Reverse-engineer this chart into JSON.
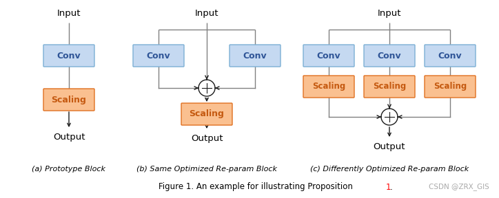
{
  "bg_color": "#ffffff",
  "conv_color": "#c5d9f1",
  "conv_edge_color": "#7bafd4",
  "scaling_color": "#fac090",
  "scaling_edge_color": "#e07020",
  "conv_text_color": "#2f5597",
  "scaling_text_color": "#c55a11",
  "line_color": "#808080",
  "arrow_color": "#1a1a1a",
  "add_circle_color": "#ffffff",
  "add_circle_edge": "#1a1a1a",
  "title_prefix": "Figure 1. An example for illustrating Proposition ",
  "title_num": "1",
  "title_suffix": ".",
  "watermark": "CSDN @ZRX_GIS",
  "caption_a": "(a) Prototype Block",
  "caption_b": "(b) Same Optimized Re-param Block",
  "caption_c": "(c) Differently Optimized Re-param Block"
}
